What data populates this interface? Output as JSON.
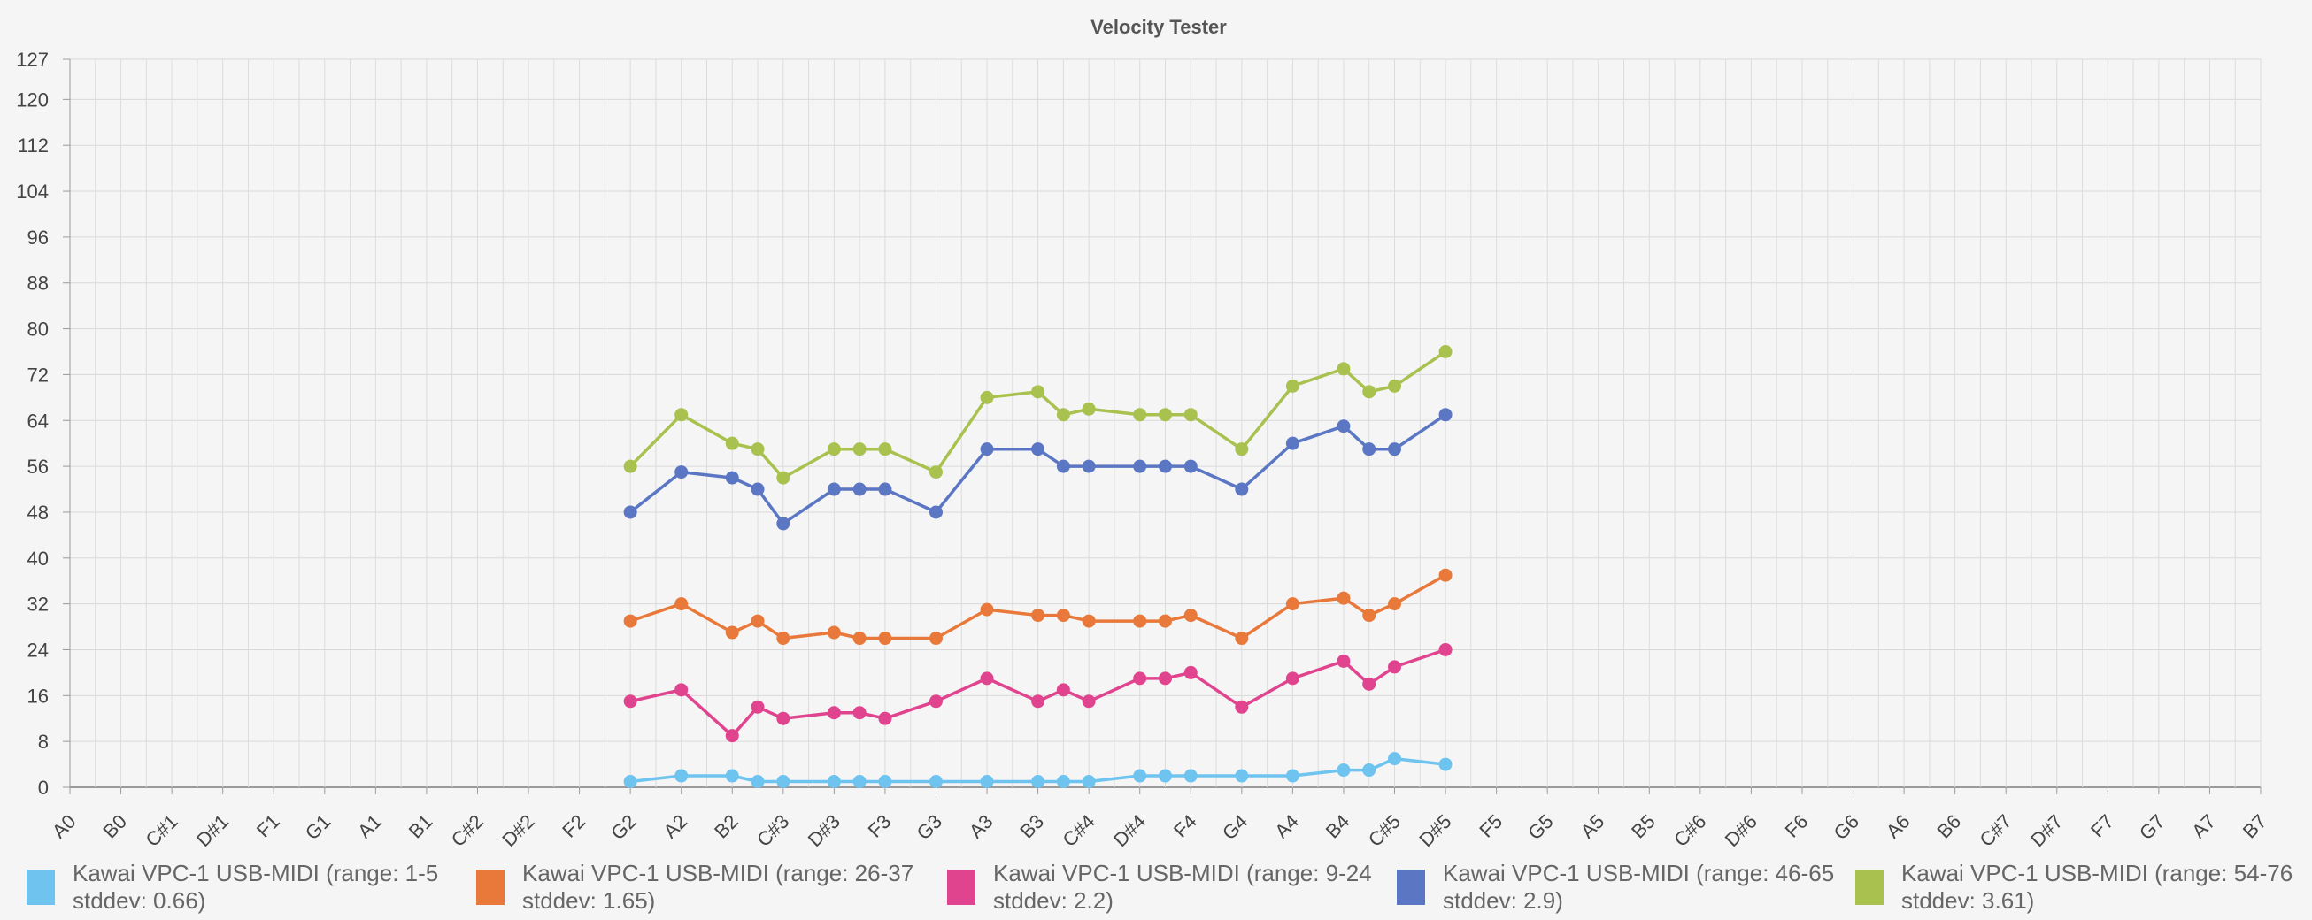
{
  "chart_data": {
    "type": "line",
    "title": "Velocity Tester",
    "xlabel": "",
    "ylabel": "",
    "ylim": [
      0,
      127
    ],
    "y_ticks": [
      0,
      8,
      16,
      24,
      32,
      40,
      48,
      56,
      64,
      72,
      80,
      88,
      96,
      104,
      112,
      120,
      127
    ],
    "grid": true,
    "legend_position": "bottom",
    "categories": [
      "A0",
      "B0",
      "C#1",
      "D#1",
      "F1",
      "G1",
      "A1",
      "B1",
      "C#2",
      "D#2",
      "F2",
      "G2",
      "A2",
      "B2",
      "C#3",
      "D#3",
      "F3",
      "G3",
      "A3",
      "B3",
      "C#4",
      "D#4",
      "F4",
      "G4",
      "A4",
      "B4",
      "C#5",
      "D#5",
      "F5",
      "G5",
      "A5",
      "B5",
      "C#6",
      "D#6",
      "F6",
      "G6",
      "A6",
      "B6",
      "C#7",
      "D#7",
      "F7",
      "G7",
      "A7",
      "B7"
    ],
    "series": [
      {
        "name": "Kawai VPC-1 USB-MIDI (range: 1-5 stddev: 0.66)",
        "legend_lines": [
          "Kawai VPC-1 USB-MIDI (range: 1-5",
          "stddev: 0.66)"
        ],
        "color": "#6ec3ef",
        "points": [
          [
            "G2",
            1
          ],
          [
            "A2",
            2
          ],
          [
            "B2",
            2
          ],
          [
            "C3",
            1
          ],
          [
            "C#3",
            1
          ],
          [
            "D#3",
            1
          ],
          [
            "E3",
            1
          ],
          [
            "F3",
            1
          ],
          [
            "G3",
            1
          ],
          [
            "A3",
            1
          ],
          [
            "B3",
            1
          ],
          [
            "C4",
            1
          ],
          [
            "C#4",
            1
          ],
          [
            "D#4",
            2
          ],
          [
            "E4",
            2
          ],
          [
            "F4",
            2
          ],
          [
            "G4",
            2
          ],
          [
            "A4",
            2
          ],
          [
            "B4",
            3
          ],
          [
            "C5",
            3
          ],
          [
            "C#5",
            5
          ],
          [
            "D#5",
            4
          ]
        ]
      },
      {
        "name": "Kawai VPC-1 USB-MIDI (range: 26-37 stddev: 1.65)",
        "legend_lines": [
          "Kawai VPC-1 USB-MIDI (range: 26-37",
          "stddev: 1.65)"
        ],
        "color": "#e8793a",
        "points": [
          [
            "G2",
            29
          ],
          [
            "A2",
            32
          ],
          [
            "B2",
            27
          ],
          [
            "C3",
            29
          ],
          [
            "C#3",
            26
          ],
          [
            "D#3",
            27
          ],
          [
            "E3",
            26
          ],
          [
            "F3",
            26
          ],
          [
            "G3",
            26
          ],
          [
            "A3",
            31
          ],
          [
            "B3",
            30
          ],
          [
            "C4",
            30
          ],
          [
            "C#4",
            29
          ],
          [
            "D#4",
            29
          ],
          [
            "E4",
            29
          ],
          [
            "F4",
            30
          ],
          [
            "G4",
            26
          ],
          [
            "A4",
            32
          ],
          [
            "B4",
            33
          ],
          [
            "C5",
            30
          ],
          [
            "C#5",
            32
          ],
          [
            "D#5",
            37
          ]
        ]
      },
      {
        "name": "Kawai VPC-1 USB-MIDI (range: 9-24 stddev: 2.2)",
        "legend_lines": [
          "Kawai VPC-1 USB-MIDI (range: 9-24",
          "stddev: 2.2)"
        ],
        "color": "#e0448e",
        "points": [
          [
            "G2",
            15
          ],
          [
            "A2",
            17
          ],
          [
            "B2",
            9
          ],
          [
            "C3",
            14
          ],
          [
            "C#3",
            12
          ],
          [
            "D#3",
            13
          ],
          [
            "E3",
            13
          ],
          [
            "F3",
            12
          ],
          [
            "G3",
            15
          ],
          [
            "A3",
            19
          ],
          [
            "B3",
            15
          ],
          [
            "C4",
            17
          ],
          [
            "C#4",
            15
          ],
          [
            "D#4",
            19
          ],
          [
            "E4",
            19
          ],
          [
            "F4",
            20
          ],
          [
            "G4",
            14
          ],
          [
            "A4",
            19
          ],
          [
            "B4",
            22
          ],
          [
            "C5",
            18
          ],
          [
            "C#5",
            21
          ],
          [
            "D#5",
            24
          ]
        ]
      },
      {
        "name": "Kawai VPC-1 USB-MIDI (range: 46-65 stddev: 2.9)",
        "legend_lines": [
          "Kawai VPC-1 USB-MIDI (range: 46-65",
          "stddev: 2.9)"
        ],
        "color": "#5b77c4",
        "points": [
          [
            "G2",
            48
          ],
          [
            "A2",
            55
          ],
          [
            "B2",
            54
          ],
          [
            "C3",
            52
          ],
          [
            "C#3",
            46
          ],
          [
            "D#3",
            52
          ],
          [
            "E3",
            52
          ],
          [
            "F3",
            52
          ],
          [
            "G3",
            48
          ],
          [
            "A3",
            59
          ],
          [
            "B3",
            59
          ],
          [
            "C4",
            56
          ],
          [
            "C#4",
            56
          ],
          [
            "D#4",
            56
          ],
          [
            "E4",
            56
          ],
          [
            "F4",
            56
          ],
          [
            "G4",
            52
          ],
          [
            "A4",
            60
          ],
          [
            "B4",
            63
          ],
          [
            "C5",
            59
          ],
          [
            "C#5",
            59
          ],
          [
            "D#5",
            65
          ]
        ]
      },
      {
        "name": "Kawai VPC-1 USB-MIDI (range: 54-76 stddev: 3.61)",
        "legend_lines": [
          "Kawai VPC-1 USB-MIDI (range: 54-76",
          "stddev: 3.61)"
        ],
        "color": "#a9c14e",
        "points": [
          [
            "G2",
            56
          ],
          [
            "A2",
            65
          ],
          [
            "B2",
            60
          ],
          [
            "C3",
            59
          ],
          [
            "C#3",
            54
          ],
          [
            "D#3",
            59
          ],
          [
            "E3",
            59
          ],
          [
            "F3",
            59
          ],
          [
            "G3",
            55
          ],
          [
            "A3",
            68
          ],
          [
            "B3",
            69
          ],
          [
            "C4",
            65
          ],
          [
            "C#4",
            66
          ],
          [
            "D#4",
            65
          ],
          [
            "E4",
            65
          ],
          [
            "F4",
            65
          ],
          [
            "G4",
            59
          ],
          [
            "A4",
            70
          ],
          [
            "B4",
            73
          ],
          [
            "C5",
            69
          ],
          [
            "C#5",
            70
          ],
          [
            "D#5",
            76
          ]
        ]
      }
    ]
  }
}
